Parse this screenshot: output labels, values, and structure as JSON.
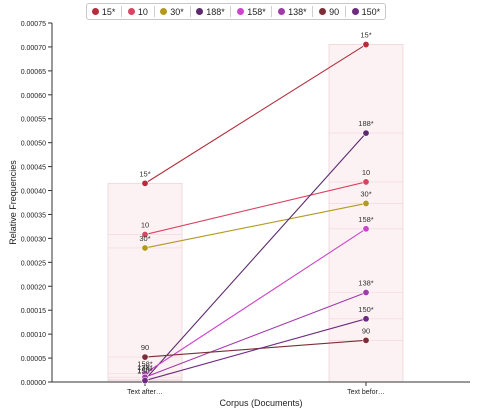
{
  "chart_data": {
    "type": "line",
    "xlabel": "Corpus (Documents)",
    "ylabel": "Relative Frequencies",
    "ylim": [
      0,
      0.00075
    ],
    "yticks": [
      "0.00000",
      "0.00005",
      "0.00010",
      "0.00015",
      "0.00020",
      "0.00025",
      "0.00030",
      "0.00035",
      "0.00040",
      "0.00045",
      "0.00050",
      "0.00055",
      "0.00060",
      "0.00065",
      "0.00070",
      "0.00075"
    ],
    "categories": [
      "Text after…",
      "Text befor…"
    ],
    "legend_position": "top",
    "grid": false,
    "series": [
      {
        "name": "15*",
        "color": "#b32d3a",
        "values": [
          0.000415,
          0.000705
        ]
      },
      {
        "name": "10",
        "color": "#d94463",
        "values": [
          0.000308,
          0.000418
        ]
      },
      {
        "name": "30*",
        "color": "#b39a1e",
        "values": [
          0.00028,
          0.000373
        ]
      },
      {
        "name": "188*",
        "color": "#5e2a6e",
        "values": [
          5e-06,
          0.00052
        ]
      },
      {
        "name": "158*",
        "color": "#cc44cc",
        "values": [
          1.8e-05,
          0.00032
        ]
      },
      {
        "name": "138*",
        "color": "#a03aaa",
        "values": [
          1e-05,
          0.000187
        ]
      },
      {
        "name": "90",
        "color": "#7a2f36",
        "values": [
          5.2e-05,
          8.7e-05
        ]
      },
      {
        "name": "150*",
        "color": "#6e2a80",
        "values": [
          3e-06,
          0.000132
        ]
      }
    ]
  }
}
